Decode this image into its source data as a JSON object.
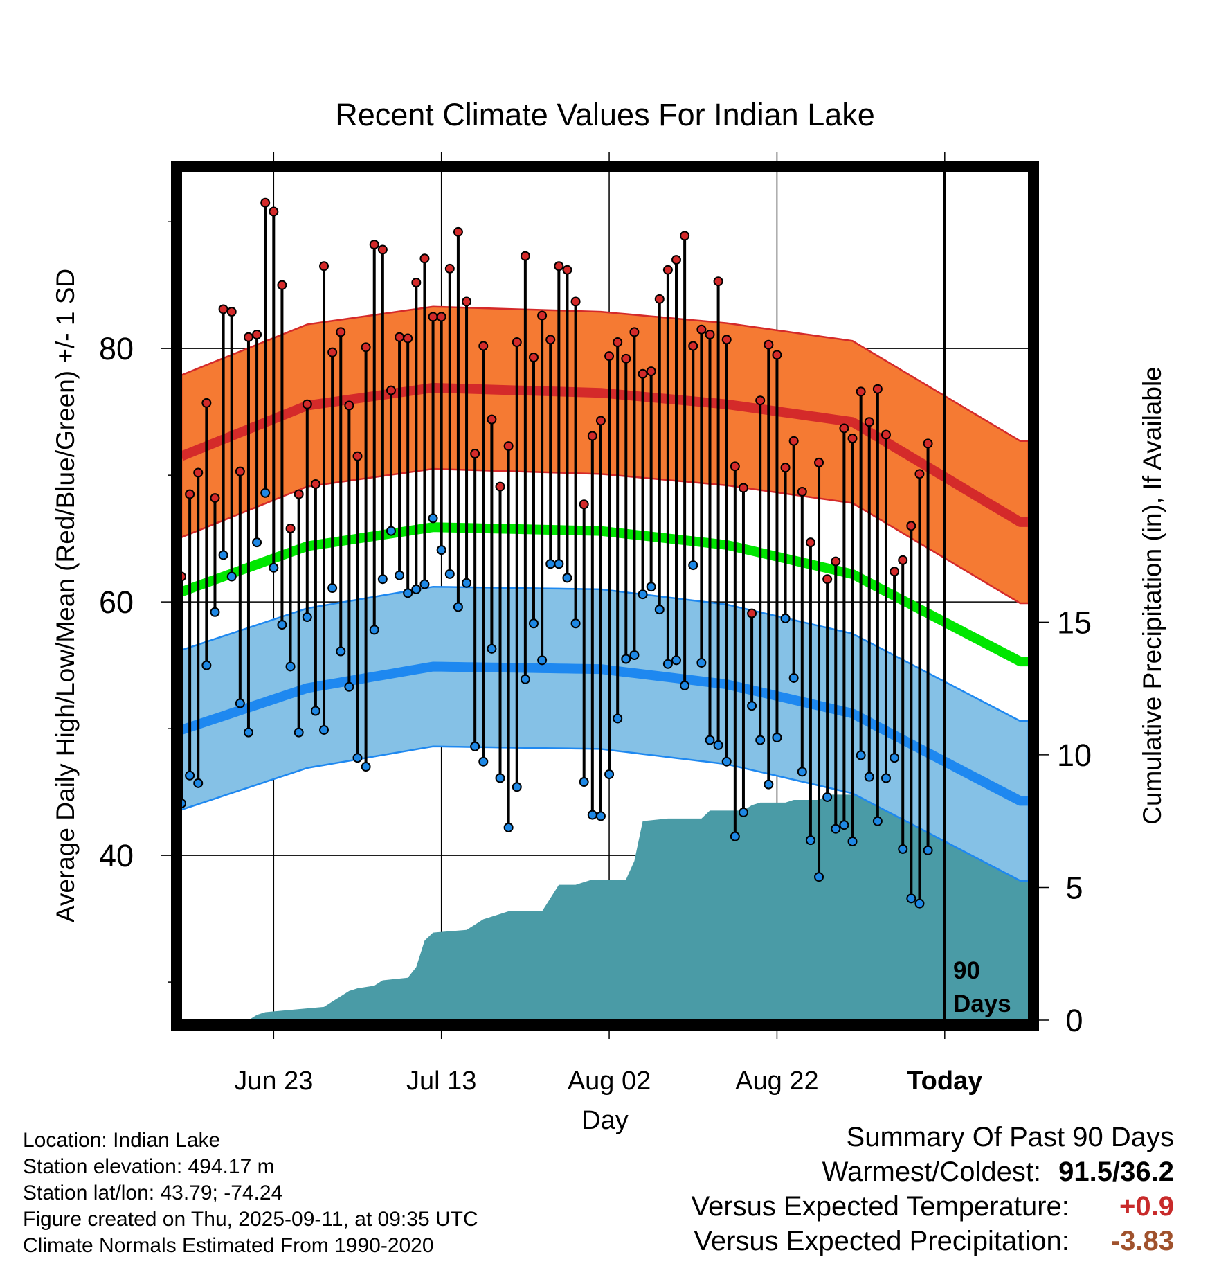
{
  "title": "Recent Climate Values For Indian Lake",
  "chart_data": {
    "type": "line",
    "title": "Recent Climate Values For Indian Lake",
    "xlabel": "Day",
    "ylabel_left": "Average Daily High/Low/Mean (Red/Blue/Green) +/- 1 SD",
    "ylabel_right": "Cumulative Precipitation (in), If Available",
    "x_tick_labels": [
      "Jun 23",
      "Jul 13",
      "Aug 02",
      "Aug 22",
      "Today"
    ],
    "x_tick_days": [
      11,
      31,
      51,
      71,
      91
    ],
    "y_left_ticks": [
      40,
      60,
      80
    ],
    "y_left_range": [
      27,
      94
    ],
    "y_right_ticks": [
      0,
      5,
      10,
      15
    ],
    "y_right_range": [
      0,
      32
    ],
    "x_range": [
      0,
      101
    ],
    "today_marker_label_1": "90",
    "today_marker_label_2": "Days",
    "grid": true,
    "days": [
      0,
      1,
      2,
      3,
      4,
      5,
      6,
      7,
      8,
      9,
      10,
      11,
      12,
      13,
      14,
      15,
      16,
      17,
      18,
      19,
      20,
      21,
      22,
      23,
      24,
      25,
      26,
      27,
      28,
      29,
      30,
      31,
      32,
      33,
      34,
      35,
      36,
      37,
      38,
      39,
      40,
      41,
      42,
      43,
      44,
      45,
      46,
      47,
      48,
      49,
      50,
      51,
      52,
      53,
      54,
      55,
      56,
      57,
      58,
      59,
      60,
      61,
      62,
      63,
      64,
      65,
      66,
      67,
      68,
      69,
      70,
      71,
      72,
      73,
      74,
      75,
      76,
      77,
      78,
      79,
      80,
      81,
      82,
      83,
      84,
      85,
      86,
      87,
      88,
      89
    ],
    "high": [
      62,
      68.5,
      70.2,
      75.7,
      68.2,
      83.1,
      82.9,
      70.3,
      80.9,
      81.1,
      91.5,
      90.8,
      85,
      65.8,
      68.5,
      75.6,
      69.3,
      86.5,
      79.7,
      81.3,
      75.5,
      71.5,
      80.1,
      88.2,
      87.8,
      76.7,
      80.9,
      80.8,
      85.2,
      87.1,
      82.5,
      82.5,
      86.3,
      89.2,
      83.7,
      71.7,
      80.2,
      74.4,
      69.1,
      72.3,
      80.5,
      87.3,
      79.3,
      82.6,
      80.7,
      86.5,
      86.2,
      83.7,
      67.7,
      73.1,
      74.3,
      79.4,
      80.5,
      79.2,
      81.3,
      78,
      78.2,
      83.9,
      86.2,
      87,
      88.9,
      80.2,
      81.5,
      81.1,
      85.3,
      80.7,
      70.7,
      69,
      59.1,
      75.9,
      80.3,
      79.5,
      70.6,
      72.7,
      68.7,
      64.7,
      71,
      61.8,
      63.2,
      73.7,
      72.9,
      76.6,
      74.2,
      76.8,
      73.2,
      62.4,
      63.3,
      66,
      70.1,
      72.5
    ],
    "low": [
      44.1,
      46.3,
      45.7,
      55,
      59.2,
      63.7,
      62,
      52,
      49.7,
      64.7,
      68.6,
      62.7,
      58.2,
      54.9,
      49.7,
      58.8,
      51.4,
      49.9,
      61.1,
      56.1,
      53.3,
      47.7,
      47,
      57.8,
      61.8,
      65.6,
      62.1,
      60.7,
      61,
      61.4,
      66.6,
      64.1,
      62.2,
      59.6,
      61.5,
      48.6,
      47.4,
      56.3,
      46.1,
      42.2,
      45.4,
      53.9,
      58.3,
      55.4,
      63,
      63,
      61.9,
      58.3,
      45.8,
      43.2,
      43.1,
      46.4,
      50.8,
      55.5,
      55.8,
      60.6,
      61.2,
      59.4,
      55.1,
      55.4,
      53.4,
      62.9,
      55.2,
      49.1,
      48.7,
      47.4,
      41.5,
      43.4,
      51.8,
      49.1,
      45.6,
      49.3,
      58.7,
      54,
      46.6,
      41.2,
      38.3,
      44.6,
      42.1,
      42.4,
      41.1,
      47.9,
      46.2,
      42.7,
      46.1,
      47.7,
      40.5,
      36.6,
      36.2,
      40.4
    ],
    "normal_high": [
      71.5,
      75.5,
      76.9,
      76.5,
      75.6,
      74.2,
      66.3
    ],
    "normal_low": [
      49.9,
      53.2,
      54.9,
      54.7,
      53.5,
      51.2,
      44.3
    ],
    "normal_mean": [
      60.8,
      64.4,
      65.9,
      65.6,
      64.5,
      62.2,
      55.3
    ],
    "normal_days": [
      0,
      15,
      30,
      50,
      65,
      80,
      100
    ],
    "sd_high": 6.4,
    "sd_low": 6.3,
    "precip_days": [
      0,
      8,
      9,
      10,
      17,
      18,
      20,
      21,
      23,
      24,
      27,
      28,
      29,
      30,
      34,
      35,
      36,
      38,
      39,
      43,
      44,
      45,
      47,
      48,
      49,
      53,
      54,
      55,
      58,
      59,
      60,
      62,
      63,
      64,
      66,
      67,
      68,
      69,
      72,
      73,
      76,
      77,
      82,
      83,
      84,
      85,
      89,
      90
    ],
    "precip_cum": [
      0,
      0,
      0.2,
      0.3,
      0.5,
      0.7,
      1.1,
      1.2,
      1.3,
      1.5,
      1.6,
      2.0,
      3.0,
      3.3,
      3.4,
      3.6,
      3.8,
      4.0,
      4.1,
      4.1,
      4.6,
      5.1,
      5.1,
      5.2,
      5.3,
      5.3,
      6.0,
      7.5,
      7.6,
      7.6,
      7.6,
      7.6,
      7.9,
      7.9,
      7.9,
      7.9,
      8.1,
      8.2,
      8.2,
      8.3,
      8.3,
      8.5,
      8.5,
      8.5,
      8.9,
      9.2,
      9.4,
      9.4
    ]
  },
  "station_info": {
    "location": "Location: Indian Lake",
    "elevation": "Station elevation: 494.17 m",
    "latlon": "Station lat/lon: 43.79; -74.24",
    "created": "Figure created on Thu, 2025-09-11, at 09:35 UTC",
    "normals": "Climate Normals Estimated From 1990-2020"
  },
  "summary": {
    "heading": "Summary Of Past 90 Days",
    "warm_cold_label": "Warmest/Coldest:",
    "warm_cold_value": "91.5/36.2",
    "temp_label": "Versus Expected Temperature:",
    "temp_value": "+0.9",
    "temp_value_color": "#c82a2a",
    "precip_label": "Versus Expected Precipitation:",
    "precip_value": "-3.83",
    "precip_value_color": "#a0522d"
  },
  "colors": {
    "high_band": "#f57a33",
    "high_line": "#d42a2a",
    "low_band": "#85c1e6",
    "low_line": "#1e88f0",
    "mean_line": "#00e600",
    "precip_fill": "#4a9ba6",
    "high_point": "#d42a2a",
    "low_point": "#1e88e5"
  }
}
